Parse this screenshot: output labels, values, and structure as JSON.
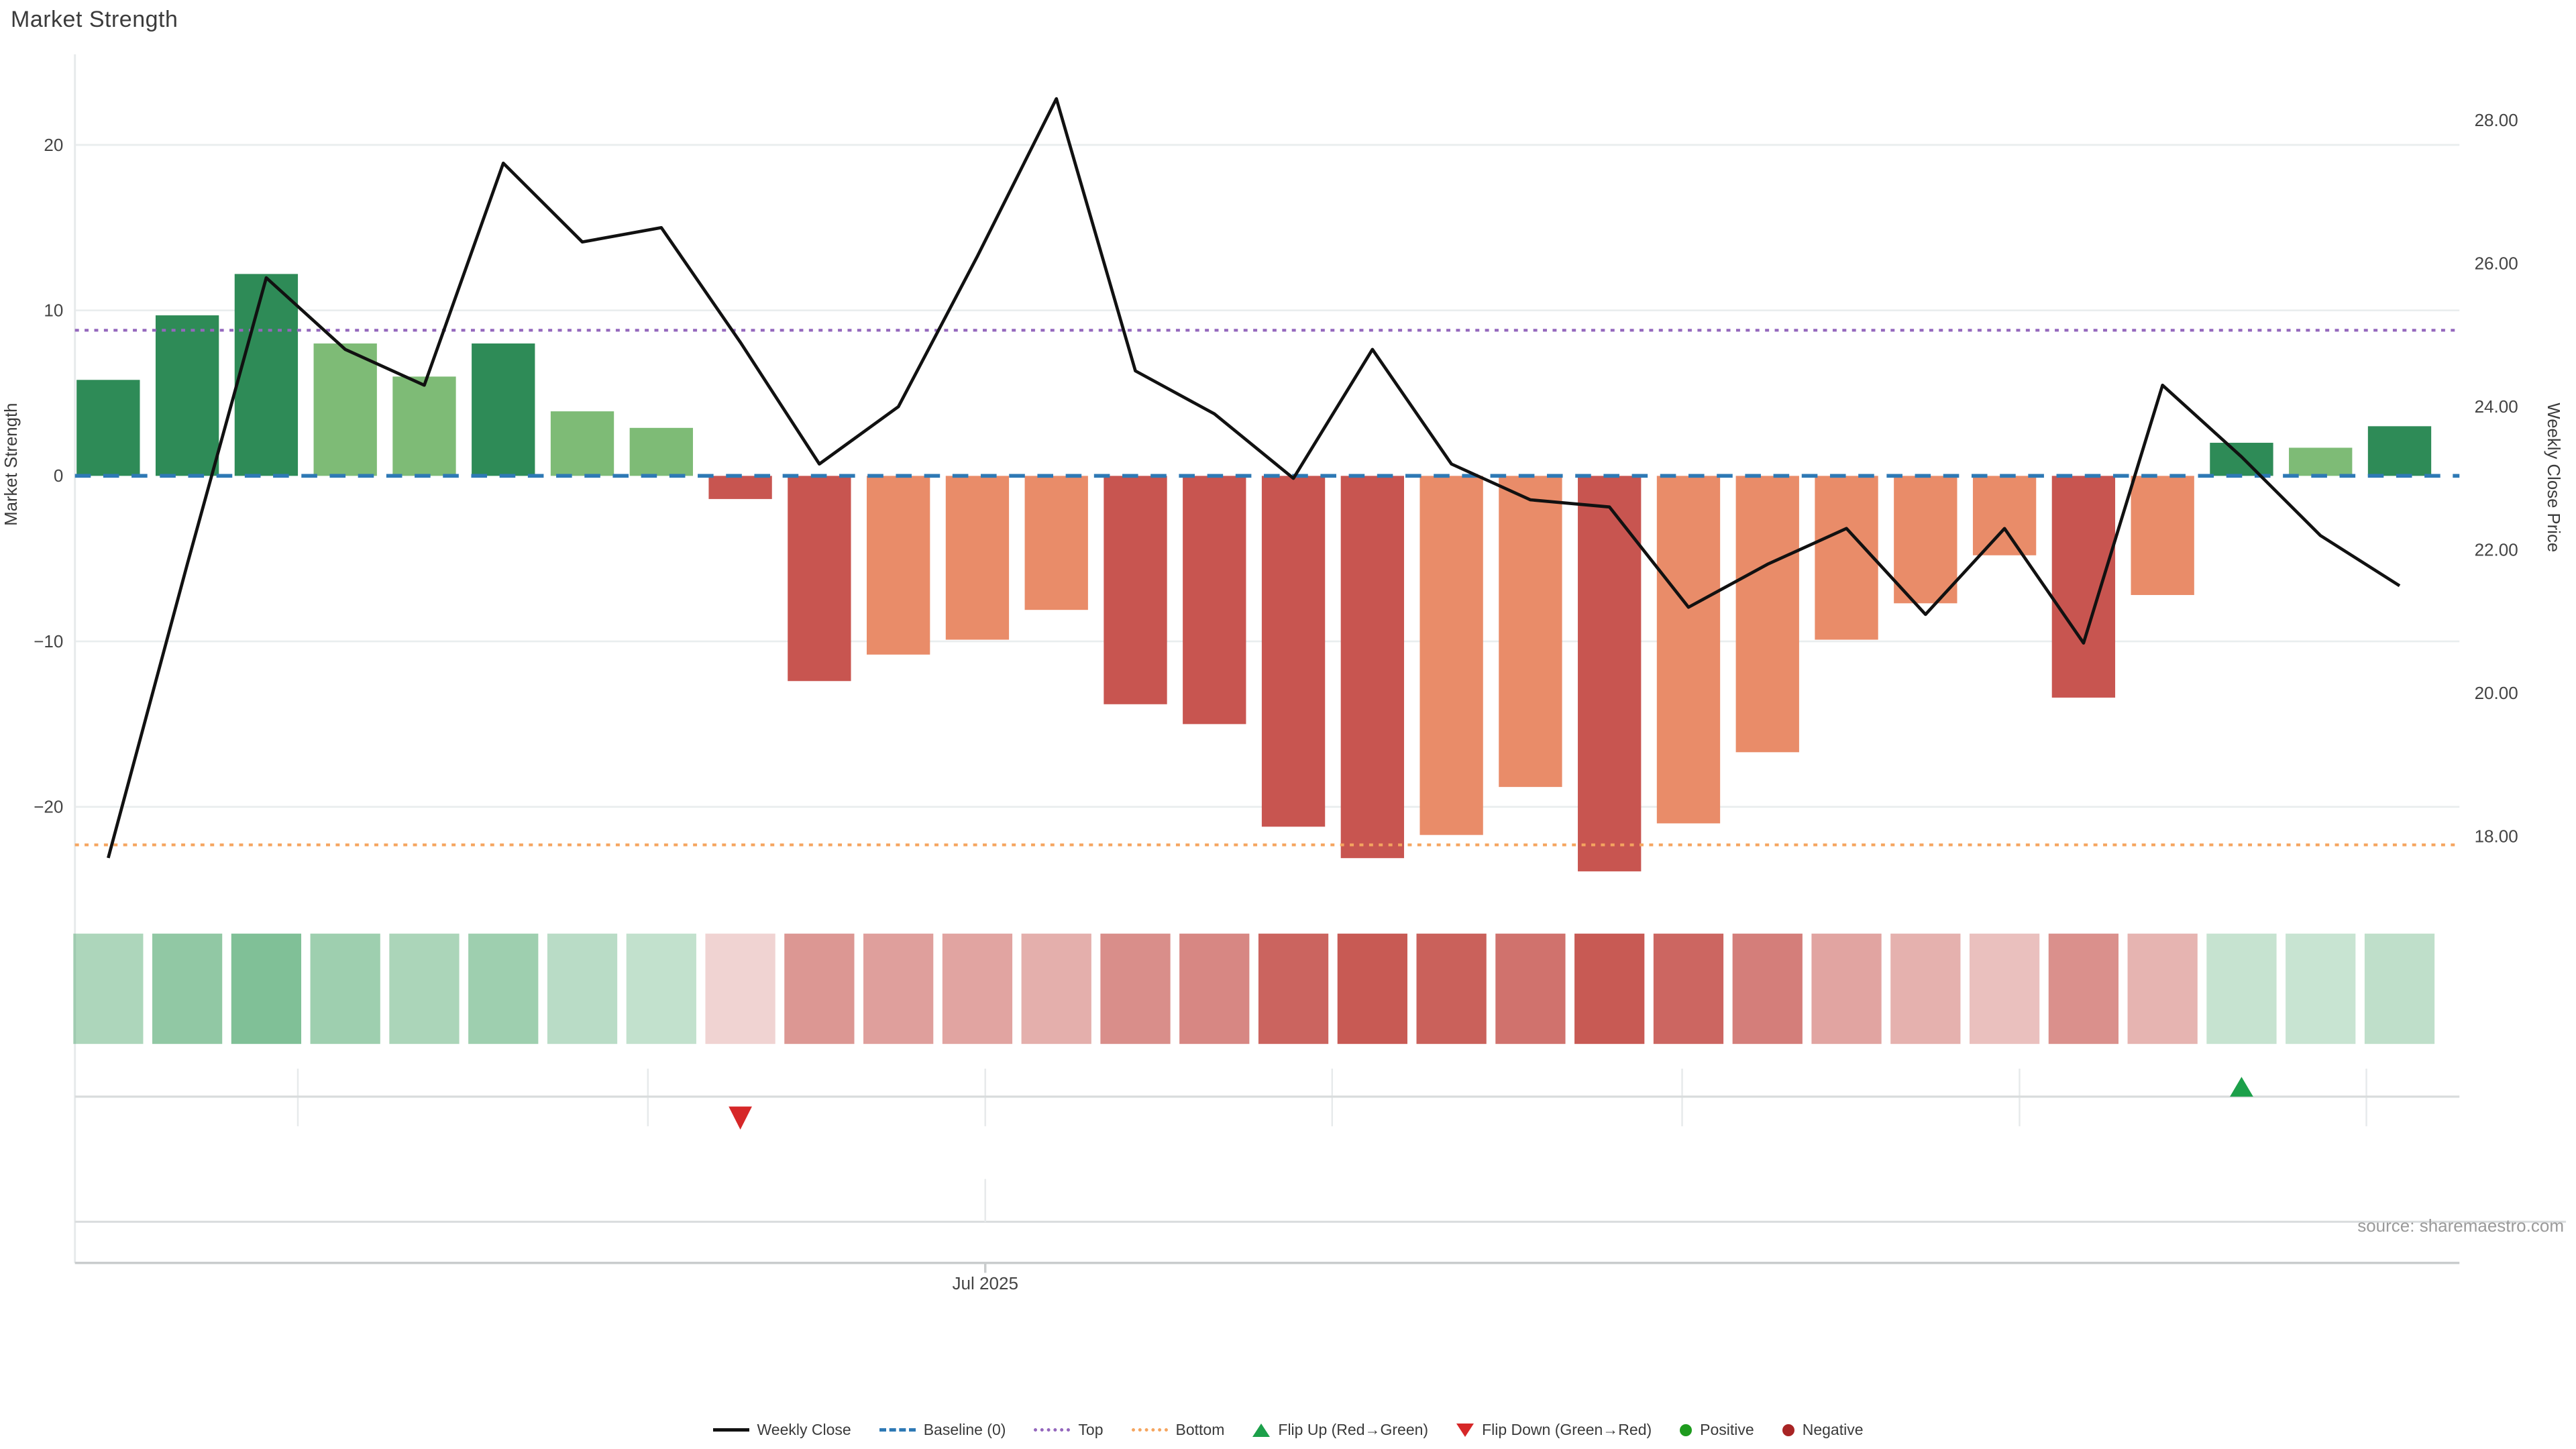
{
  "title": "Market Strength",
  "axes": {
    "left_label": "Market Strength",
    "left_ticks": [
      "20",
      "10",
      "0",
      "−10",
      "−20"
    ],
    "left_tick_values": [
      20,
      10,
      0,
      -10,
      -20
    ],
    "right_label": "Weekly Close Price",
    "right_ticks": [
      "28.00",
      "26.00",
      "24.00",
      "22.00",
      "20.00",
      "18.00"
    ],
    "right_tick_values": [
      28,
      26,
      24,
      22,
      20,
      18
    ],
    "x_tick_label": "Jul 2025"
  },
  "annotations": {
    "source": "source: sharemaestro.com"
  },
  "legend": [
    {
      "label": "Weekly Close",
      "marker": "lm-line"
    },
    {
      "label": "Baseline (0)",
      "marker": "lm-dash"
    },
    {
      "label": "Top",
      "marker": "lm-dot-purple"
    },
    {
      "label": "Bottom",
      "marker": "lm-dot-orange"
    },
    {
      "label": "Flip Up (Red→Green)",
      "marker": "lm-tri-up"
    },
    {
      "label": "Flip Down (Green→Red)",
      "marker": "lm-tri-down"
    },
    {
      "label": "Positive",
      "marker": "lm-circle-green"
    },
    {
      "label": "Negative",
      "marker": "lm-circle-red"
    }
  ],
  "colors": {
    "bar_dark_green": "#2e8b57",
    "bar_light_green": "#7ebb76",
    "bar_dark_red": "#c85550",
    "bar_salmon": "#e98c69",
    "price_line": "#111111",
    "baseline": "#2e79b5",
    "top_line": "#9467bd",
    "bottom_line": "#f5a55f",
    "grid": "#e9edee",
    "axis_line": "#c9cccd",
    "lane_line": "#d9dcdd",
    "lane_grid": "#e7eaeb",
    "text": "#3b3b3b",
    "tick_text": "#444444",
    "flip_up": "#1ca04a",
    "flip_down": "#d62728",
    "heat_green_base": [
      44,
      150,
      81
    ],
    "heat_red_base": [
      197,
      81,
      75
    ]
  },
  "chart_data": {
    "type": [
      "bar",
      "line",
      "heatmap"
    ],
    "x_axis": {
      "unit": "weekly",
      "visible_tick": "Jul 2025",
      "visible_tick_week_index": 11.1,
      "month_gridline_week_indices": [
        2.4,
        6.83,
        11.1,
        15.49,
        19.92,
        24.19,
        28.58
      ]
    },
    "strength_bars": {
      "name": "Market Strength",
      "ylim": [
        -24.5,
        25.5
      ],
      "values": [
        5.8,
        9.7,
        12.2,
        8.0,
        6.0,
        8.0,
        3.9,
        2.9,
        -1.4,
        -12.4,
        -10.8,
        -9.9,
        -8.1,
        -13.8,
        -15.0,
        -21.2,
        -23.1,
        -21.7,
        -18.8,
        -23.9,
        -21.0,
        -16.7,
        -9.9,
        -7.7,
        -4.8,
        -13.4,
        -7.2,
        2.0,
        1.7,
        3.0
      ],
      "tones": [
        "dg",
        "dg",
        "dg",
        "lg",
        "lg",
        "dg",
        "lg",
        "lg",
        "dr",
        "dr",
        "lr",
        "lr",
        "lr",
        "dr",
        "dr",
        "dr",
        "dr",
        "lr",
        "lr",
        "dr",
        "lr",
        "lr",
        "lr",
        "lr",
        "lr",
        "dr",
        "lr",
        "dg",
        "lg",
        "dg"
      ]
    },
    "weekly_close_line": {
      "name": "Weekly Close",
      "ylim": [
        17.4,
        28.9
      ],
      "values": [
        17.7,
        21.8,
        25.8,
        24.8,
        24.3,
        27.4,
        26.3,
        26.5,
        24.9,
        23.2,
        24.0,
        26.1,
        28.3,
        24.5,
        23.9,
        23.0,
        24.8,
        23.2,
        22.7,
        22.6,
        21.2,
        21.8,
        22.3,
        21.1,
        22.3,
        20.7,
        24.3,
        23.3,
        22.2,
        21.5
      ]
    },
    "reference_lines": {
      "baseline": 0,
      "top": 8.8,
      "bottom": -22.3
    },
    "heat_strip": {
      "max_abs": 24
    },
    "flip_markers": [
      {
        "week": 9,
        "direction": "down"
      },
      {
        "week": 28,
        "direction": "up"
      }
    ]
  }
}
